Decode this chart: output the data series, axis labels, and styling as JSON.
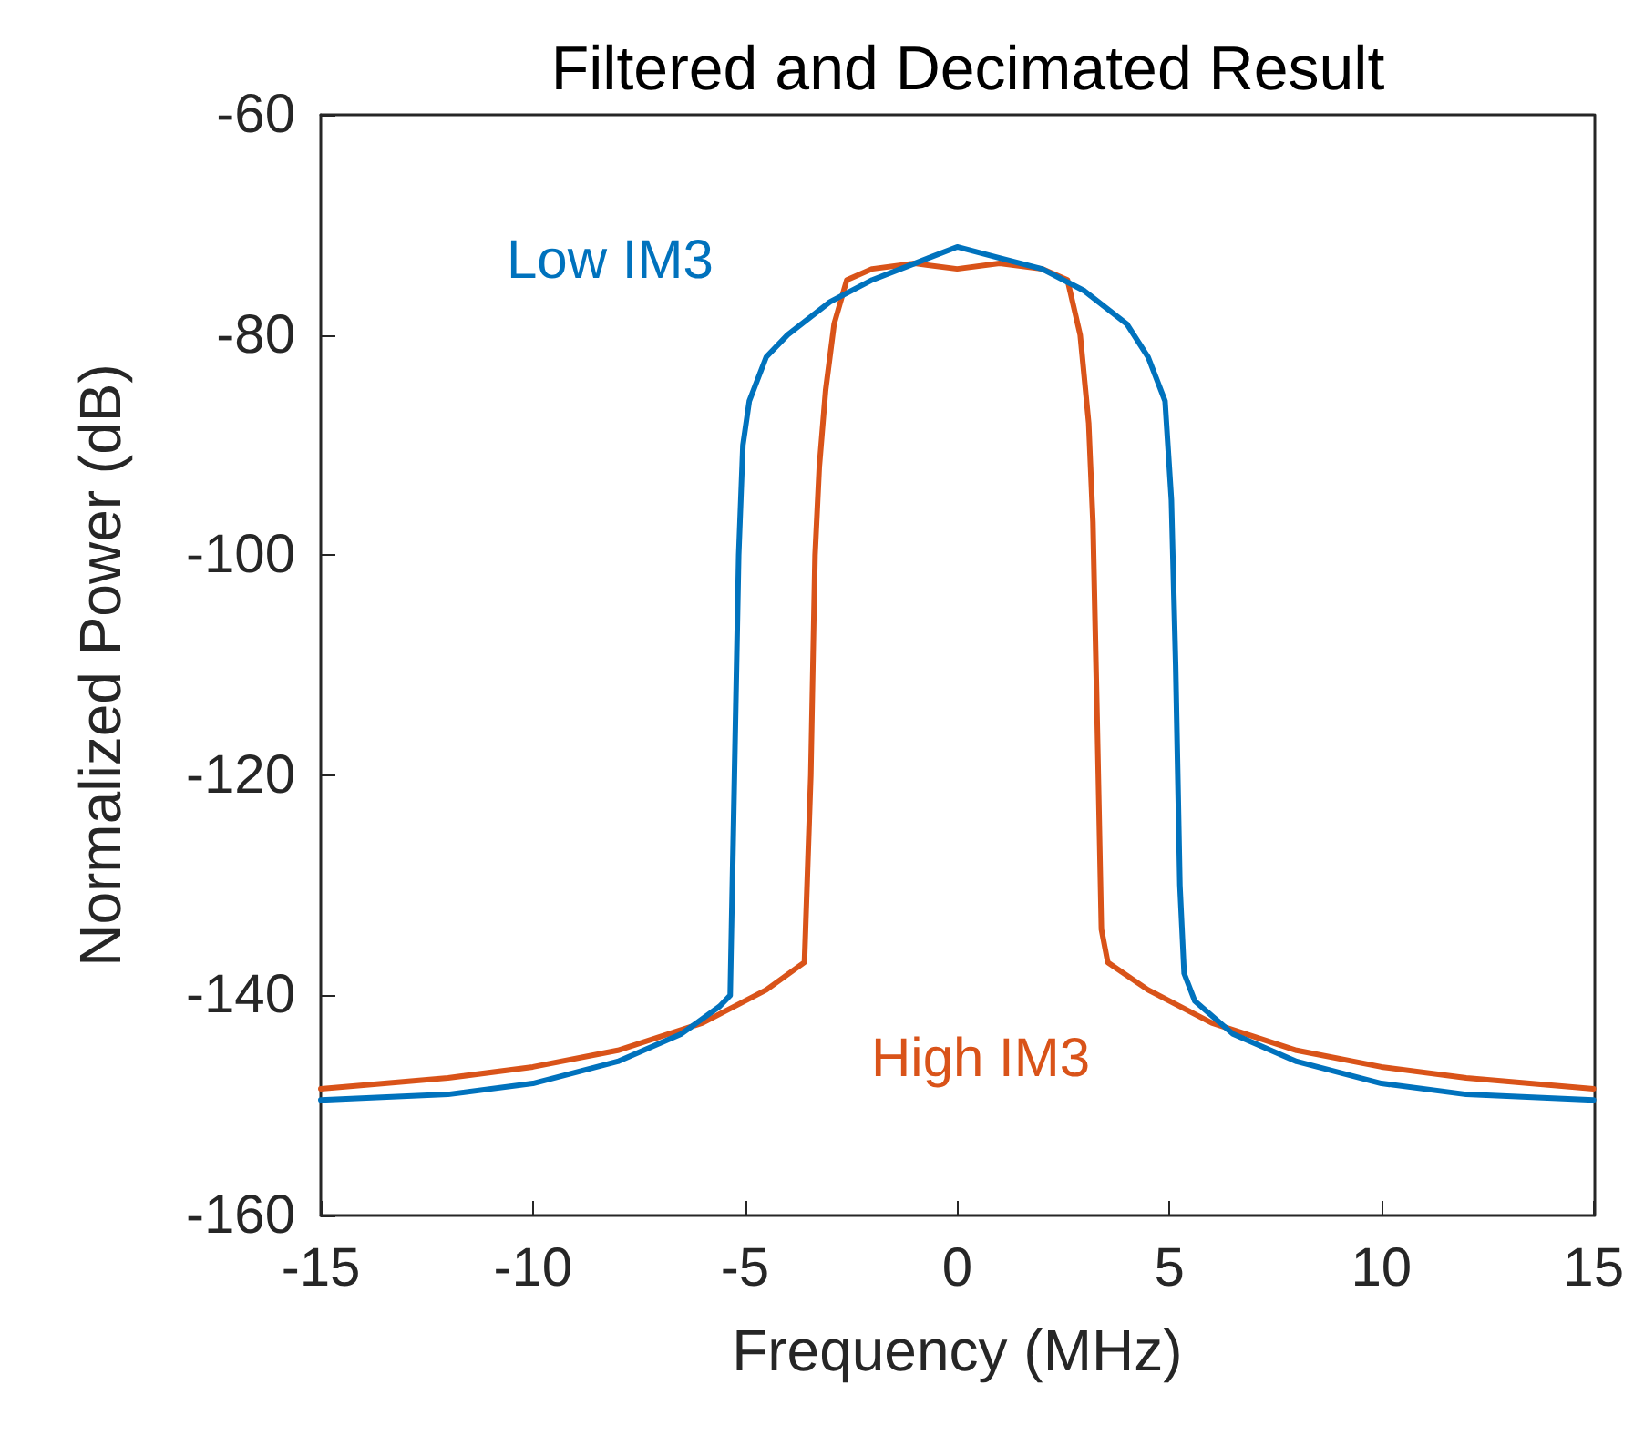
{
  "chart_data": {
    "type": "line",
    "title": "Filtered and Decimated Result",
    "xlabel": "Frequency (MHz)",
    "ylabel": "Normalized Power (dB)",
    "xlim": [
      -15,
      15
    ],
    "xticks": [
      -15,
      -10,
      -5,
      0,
      5,
      10,
      15
    ],
    "ylim": [
      -160,
      -60
    ],
    "yticks": [
      -160,
      -140,
      -120,
      -100,
      -80,
      -60
    ],
    "grid": false,
    "legend": false,
    "marker": "none",
    "line_style": "solid",
    "series": [
      {
        "name": "Low IM3",
        "color": "#0072bd",
        "x": [
          -15,
          -12,
          -10,
          -8,
          -6.5,
          -5.6,
          -5.35,
          -5.25,
          -5.15,
          -5.05,
          -4.9,
          -4.5,
          -4,
          -3,
          -2,
          -1,
          0,
          1,
          2,
          3,
          4,
          4.5,
          4.9,
          5.05,
          5.15,
          5.25,
          5.35,
          5.6,
          6.5,
          8,
          10,
          12,
          15
        ],
        "values": [
          -149.5,
          -149,
          -148,
          -146,
          -143.5,
          -141,
          -140,
          -120,
          -100,
          -90,
          -86,
          -82,
          -80,
          -77,
          -75,
          -73.5,
          -72,
          -73,
          -74,
          -76,
          -79,
          -82,
          -86,
          -95,
          -110,
          -130,
          -138,
          -140.5,
          -143.5,
          -146,
          -148,
          -149,
          -149.5
        ]
      },
      {
        "name": "High IM3",
        "color": "#d95319",
        "x": [
          -15,
          -12,
          -10,
          -8,
          -6,
          -4.5,
          -3.6,
          -3.45,
          -3.35,
          -3.25,
          -3.1,
          -2.9,
          -2.6,
          -2,
          -1,
          0,
          1,
          2,
          2.6,
          2.9,
          3.1,
          3.2,
          3.3,
          3.4,
          3.55,
          4.5,
          6,
          8,
          10,
          12,
          15
        ],
        "values": [
          -148.5,
          -147.5,
          -146.5,
          -145,
          -142.5,
          -139.5,
          -137,
          -120,
          -100,
          -92,
          -85,
          -79,
          -75,
          -74,
          -73.5,
          -74,
          -73.5,
          -74,
          -75,
          -80,
          -88,
          -97,
          -115,
          -134,
          -137,
          -139.5,
          -142.5,
          -145,
          -146.5,
          -147.5,
          -148.5
        ]
      }
    ]
  }
}
